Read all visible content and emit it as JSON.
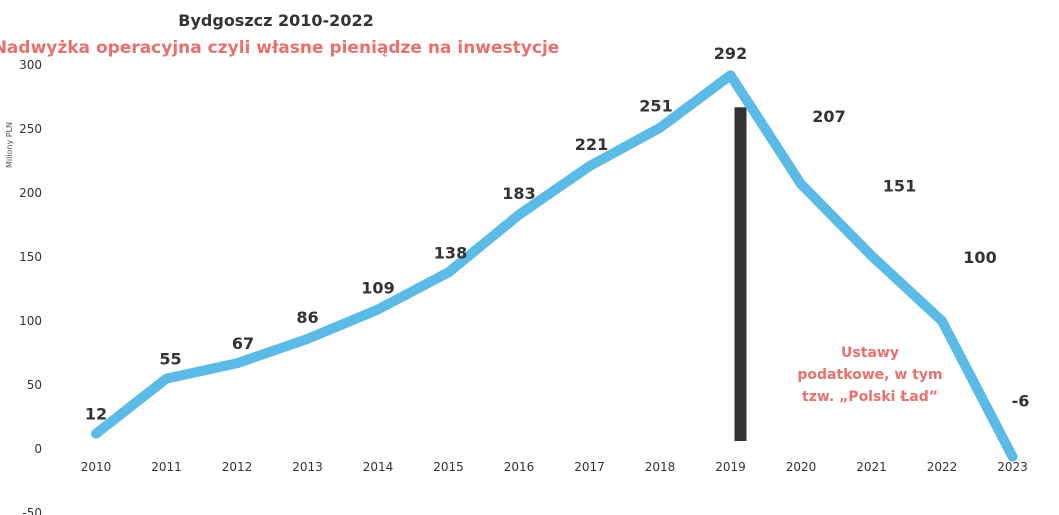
{
  "chart_data": {
    "type": "line",
    "title": "Bydgoszcz 2010-2022",
    "subtitle": "Nadwyżka operacyjna czyli własne pieniądze na inwestycje",
    "ylabel": "Miliony PLN",
    "xlabel": "",
    "x": [
      "2010",
      "2011",
      "2012",
      "2013",
      "2014",
      "2015",
      "2016",
      "2017",
      "2018",
      "2019",
      "2020",
      "2021",
      "2022",
      "2023"
    ],
    "series": [
      {
        "values": [
          12,
          55,
          67,
          86,
          109,
          138,
          183,
          221,
          251,
          292,
          207,
          151,
          100,
          -6
        ]
      }
    ],
    "data_labels": [
      "12",
      "55",
      "67",
      "86",
      "109",
      "138",
      "183",
      "221",
      "251",
      "292",
      "207",
      "151",
      "100",
      "-6"
    ],
    "yticks": [
      "300",
      "250",
      "200",
      "150",
      "100",
      "50",
      "0",
      "-50"
    ],
    "ylim": [
      -50,
      300
    ],
    "grid": false,
    "legend": "none",
    "marker": {
      "x": "2019",
      "top": 267,
      "bottom": 0
    },
    "annotation": [
      "Ustawy",
      "podatkowe,  w tym",
      "tzw. „Polski Ład”"
    ],
    "colors": {
      "line": "#5bbbe6",
      "marker": "#333333",
      "subtitle": "#e8706e",
      "labels": "#333333",
      "annotation": "#e8706e"
    }
  }
}
